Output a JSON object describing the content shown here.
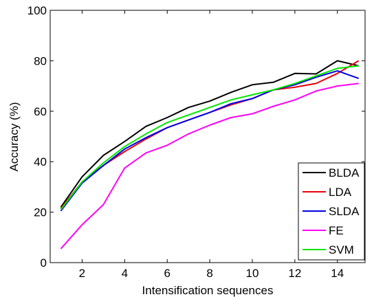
{
  "chart_data": {
    "type": "line",
    "title": "",
    "xlabel": "Intensification sequences",
    "ylabel": "Accuracy (%)",
    "xlim": [
      0.5,
      15.3
    ],
    "ylim": [
      0,
      100
    ],
    "xticks": [
      2,
      4,
      6,
      8,
      10,
      12,
      14
    ],
    "yticks": [
      0,
      20,
      40,
      60,
      80,
      100
    ],
    "grid": false,
    "legend_position": "bottom-right",
    "x": [
      1,
      2,
      3,
      4,
      5,
      6,
      7,
      8,
      9,
      10,
      11,
      12,
      13,
      14,
      15
    ],
    "series": [
      {
        "name": "BLDA",
        "color": "#000000",
        "values": [
          22,
          34,
          42.5,
          48,
          54,
          57.5,
          61.5,
          64,
          67.5,
          70.5,
          71.5,
          75,
          74.8,
          80,
          78
        ]
      },
      {
        "name": "LDA",
        "color": "#e8000b",
        "values": [
          21.5,
          32,
          38.5,
          44,
          49,
          53.5,
          56.5,
          59.5,
          62.5,
          65,
          68.5,
          69.5,
          71,
          75,
          80
        ]
      },
      {
        "name": "SLDA",
        "color": "#0000e6",
        "values": [
          20.5,
          31.5,
          38.5,
          45,
          49.5,
          53.5,
          56.5,
          59.5,
          63,
          65,
          68.5,
          70.5,
          73.5,
          76,
          73
        ]
      },
      {
        "name": "FE",
        "color": "#ff00ff",
        "values": [
          5.5,
          15,
          23,
          37.5,
          43.5,
          46.5,
          51,
          54.5,
          57.5,
          59,
          62,
          64.5,
          68,
          70,
          71
        ]
      },
      {
        "name": "SVM",
        "color": "#00e600",
        "values": [
          21,
          32,
          39.5,
          46,
          51,
          55.5,
          58.5,
          61.5,
          64.5,
          66.5,
          68.5,
          71,
          74,
          77,
          78
        ]
      }
    ]
  }
}
